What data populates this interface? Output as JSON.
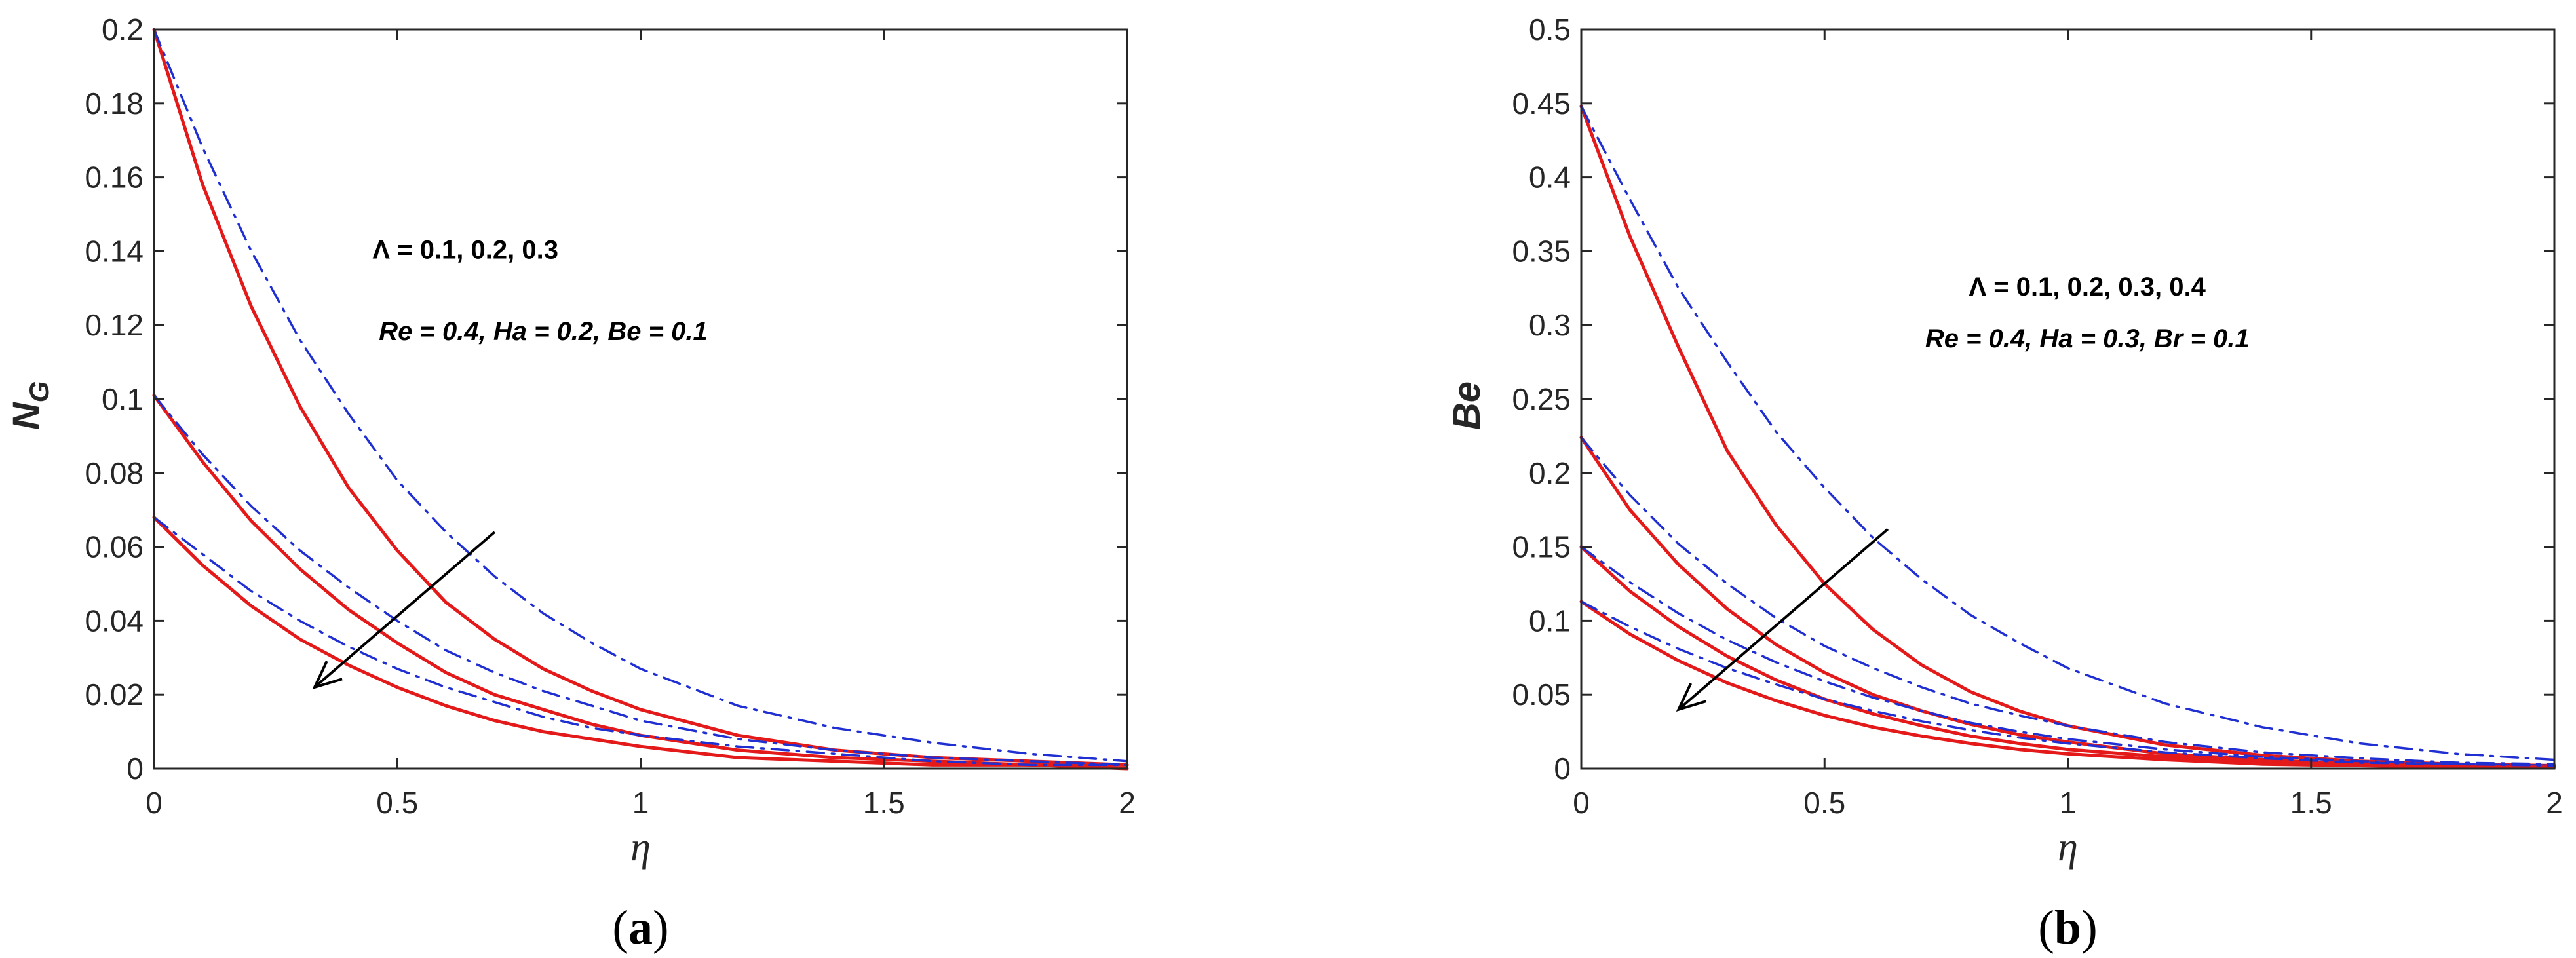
{
  "colors": {
    "red_series": "#e41a1a",
    "blue_series": "#1f2fd1",
    "axis": "#262626",
    "arrow": "#000000"
  },
  "chart_data": [
    {
      "type": "line",
      "caption": {
        "open": "(",
        "letter": "a",
        "close": ")"
      },
      "ylabel": {
        "main": "N",
        "sub": "G"
      },
      "xlabel": "η",
      "xlim": [
        0,
        2
      ],
      "ylim": [
        0,
        0.2
      ],
      "xticks": [
        0,
        0.5,
        1,
        1.5,
        2
      ],
      "xtick_labels": [
        "0",
        "0.5",
        "1",
        "1.5",
        "2"
      ],
      "yticks": [
        0,
        0.02,
        0.04,
        0.06,
        0.08,
        0.1,
        0.12,
        0.14,
        0.16,
        0.18,
        0.2
      ],
      "ytick_labels": [
        "0",
        "0.02",
        "0.04",
        "0.06",
        "0.08",
        "0.1",
        "0.12",
        "0.14",
        "0.16",
        "0.18",
        "0.2"
      ],
      "grid": false,
      "annotations": [
        {
          "text": "Re = 0.4, Ha = 0.2, Be = 0.1",
          "style": "italic"
        },
        {
          "text": "Λ = 0.1, 0.2, 0.3",
          "style": "normal"
        }
      ],
      "arrow": {
        "from": [
          0.7,
          0.064
        ],
        "to": [
          0.33,
          0.022
        ]
      },
      "series": [
        {
          "style": "solid-red",
          "x": [
            0,
            0.1,
            0.2,
            0.3,
            0.4,
            0.5,
            0.6,
            0.7,
            0.8,
            0.9,
            1.0,
            1.2,
            1.4,
            1.6,
            1.8,
            2.0
          ],
          "values": [
            0.2,
            0.158,
            0.125,
            0.098,
            0.076,
            0.059,
            0.045,
            0.035,
            0.027,
            0.021,
            0.016,
            0.009,
            0.005,
            0.003,
            0.002,
            0.001
          ]
        },
        {
          "style": "dashdot-blue",
          "x": [
            0,
            0.1,
            0.2,
            0.3,
            0.4,
            0.5,
            0.6,
            0.7,
            0.8,
            0.9,
            1.0,
            1.2,
            1.4,
            1.6,
            1.8,
            2.0
          ],
          "values": [
            0.2,
            0.168,
            0.14,
            0.116,
            0.096,
            0.078,
            0.064,
            0.052,
            0.042,
            0.034,
            0.027,
            0.017,
            0.011,
            0.007,
            0.004,
            0.002
          ]
        },
        {
          "style": "solid-red",
          "x": [
            0,
            0.1,
            0.2,
            0.3,
            0.4,
            0.5,
            0.6,
            0.7,
            0.8,
            0.9,
            1.0,
            1.2,
            1.4,
            1.6,
            1.8,
            2.0
          ],
          "values": [
            0.101,
            0.083,
            0.067,
            0.054,
            0.043,
            0.034,
            0.026,
            0.02,
            0.016,
            0.012,
            0.009,
            0.005,
            0.003,
            0.002,
            0.001,
            0.001
          ]
        },
        {
          "style": "dashdot-blue",
          "x": [
            0,
            0.1,
            0.2,
            0.3,
            0.4,
            0.5,
            0.6,
            0.7,
            0.8,
            0.9,
            1.0,
            1.2,
            1.4,
            1.6,
            1.8,
            2.0
          ],
          "values": [
            0.101,
            0.085,
            0.071,
            0.059,
            0.049,
            0.04,
            0.032,
            0.026,
            0.021,
            0.017,
            0.013,
            0.008,
            0.005,
            0.003,
            0.002,
            0.001
          ]
        },
        {
          "style": "solid-red",
          "x": [
            0,
            0.1,
            0.2,
            0.3,
            0.4,
            0.5,
            0.6,
            0.7,
            0.8,
            0.9,
            1.0,
            1.2,
            1.4,
            1.6,
            1.8,
            2.0
          ],
          "values": [
            0.068,
            0.055,
            0.044,
            0.035,
            0.028,
            0.022,
            0.017,
            0.013,
            0.01,
            0.008,
            0.006,
            0.003,
            0.002,
            0.001,
            0.001,
            0.0
          ]
        },
        {
          "style": "dashdot-blue",
          "x": [
            0,
            0.1,
            0.2,
            0.3,
            0.4,
            0.5,
            0.6,
            0.7,
            0.8,
            0.9,
            1.0,
            1.2,
            1.4,
            1.6,
            1.8,
            2.0
          ],
          "values": [
            0.068,
            0.058,
            0.048,
            0.04,
            0.033,
            0.027,
            0.022,
            0.018,
            0.014,
            0.011,
            0.009,
            0.006,
            0.004,
            0.002,
            0.001,
            0.001
          ]
        }
      ]
    },
    {
      "type": "line",
      "caption": {
        "open": "(",
        "letter": "b",
        "close": ")"
      },
      "ylabel": {
        "main": "Be",
        "sub": ""
      },
      "xlabel": "η",
      "xlim": [
        0,
        2
      ],
      "ylim": [
        0,
        0.5
      ],
      "xticks": [
        0,
        0.5,
        1,
        1.5,
        2
      ],
      "xtick_labels": [
        "0",
        "0.5",
        "1",
        "1.5",
        "2"
      ],
      "yticks": [
        0,
        0.05,
        0.1,
        0.15,
        0.2,
        0.25,
        0.3,
        0.35,
        0.4,
        0.45,
        0.5
      ],
      "ytick_labels": [
        "0",
        "0.05",
        "0.1",
        "0.15",
        "0.2",
        "0.25",
        "0.3",
        "0.35",
        "0.4",
        "0.45",
        "0.5"
      ],
      "grid": false,
      "annotations": [
        {
          "text": "Re = 0.4, Ha = 0.3, Br = 0.1",
          "style": "italic"
        },
        {
          "text": "Λ = 0.1, 0.2, 0.3, 0.4",
          "style": "normal"
        }
      ],
      "arrow": {
        "from": [
          0.63,
          0.162
        ],
        "to": [
          0.2,
          0.04
        ]
      },
      "series": [
        {
          "style": "solid-red",
          "x": [
            0,
            0.1,
            0.2,
            0.3,
            0.4,
            0.5,
            0.6,
            0.7,
            0.8,
            0.9,
            1.0,
            1.2,
            1.4,
            1.6,
            1.8,
            2.0
          ],
          "values": [
            0.448,
            0.36,
            0.285,
            0.215,
            0.165,
            0.125,
            0.094,
            0.07,
            0.052,
            0.039,
            0.029,
            0.016,
            0.009,
            0.005,
            0.003,
            0.002
          ]
        },
        {
          "style": "dashdot-blue",
          "x": [
            0,
            0.1,
            0.2,
            0.3,
            0.4,
            0.5,
            0.6,
            0.7,
            0.8,
            0.9,
            1.0,
            1.2,
            1.4,
            1.6,
            1.8,
            2.0
          ],
          "values": [
            0.448,
            0.385,
            0.325,
            0.275,
            0.228,
            0.19,
            0.156,
            0.128,
            0.104,
            0.085,
            0.068,
            0.044,
            0.028,
            0.017,
            0.01,
            0.006
          ]
        },
        {
          "style": "solid-red",
          "x": [
            0,
            0.1,
            0.2,
            0.3,
            0.4,
            0.5,
            0.6,
            0.7,
            0.8,
            0.9,
            1.0,
            1.2,
            1.4,
            1.6,
            1.8,
            2.0
          ],
          "values": [
            0.224,
            0.175,
            0.138,
            0.108,
            0.084,
            0.065,
            0.05,
            0.039,
            0.03,
            0.023,
            0.018,
            0.01,
            0.006,
            0.003,
            0.002,
            0.001
          ]
        },
        {
          "style": "dashdot-blue",
          "x": [
            0,
            0.1,
            0.2,
            0.3,
            0.4,
            0.5,
            0.6,
            0.7,
            0.8,
            0.9,
            1.0,
            1.2,
            1.4,
            1.6,
            1.8,
            2.0
          ],
          "values": [
            0.224,
            0.185,
            0.152,
            0.125,
            0.102,
            0.083,
            0.068,
            0.055,
            0.044,
            0.036,
            0.029,
            0.018,
            0.011,
            0.007,
            0.004,
            0.003
          ]
        },
        {
          "style": "solid-red",
          "x": [
            0,
            0.1,
            0.2,
            0.3,
            0.4,
            0.5,
            0.6,
            0.7,
            0.8,
            0.9,
            1.0,
            1.2,
            1.4,
            1.6,
            1.8,
            2.0
          ],
          "values": [
            0.15,
            0.12,
            0.096,
            0.076,
            0.06,
            0.047,
            0.037,
            0.029,
            0.022,
            0.017,
            0.013,
            0.008,
            0.004,
            0.003,
            0.002,
            0.001
          ]
        },
        {
          "style": "dashdot-blue",
          "x": [
            0,
            0.1,
            0.2,
            0.3,
            0.4,
            0.5,
            0.6,
            0.7,
            0.8,
            0.9,
            1.0,
            1.2,
            1.4,
            1.6,
            1.8,
            2.0
          ],
          "values": [
            0.15,
            0.126,
            0.105,
            0.087,
            0.072,
            0.059,
            0.048,
            0.039,
            0.031,
            0.025,
            0.02,
            0.013,
            0.008,
            0.005,
            0.003,
            0.002
          ]
        },
        {
          "style": "solid-red",
          "x": [
            0,
            0.1,
            0.2,
            0.3,
            0.4,
            0.5,
            0.6,
            0.7,
            0.8,
            0.9,
            1.0,
            1.2,
            1.4,
            1.6,
            1.8,
            2.0
          ],
          "values": [
            0.113,
            0.091,
            0.073,
            0.058,
            0.046,
            0.036,
            0.028,
            0.022,
            0.017,
            0.013,
            0.01,
            0.006,
            0.003,
            0.002,
            0.001,
            0.001
          ]
        },
        {
          "style": "dashdot-blue",
          "x": [
            0,
            0.1,
            0.2,
            0.3,
            0.4,
            0.5,
            0.6,
            0.7,
            0.8,
            0.9,
            1.0,
            1.2,
            1.4,
            1.6,
            1.8,
            2.0
          ],
          "values": [
            0.113,
            0.096,
            0.081,
            0.068,
            0.057,
            0.047,
            0.039,
            0.032,
            0.026,
            0.021,
            0.017,
            0.011,
            0.007,
            0.004,
            0.003,
            0.002
          ]
        }
      ]
    }
  ]
}
